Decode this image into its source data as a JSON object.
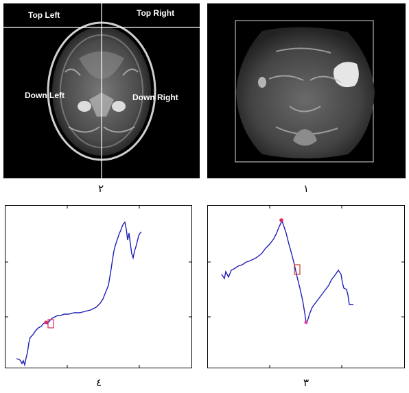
{
  "figures": [
    {
      "caption": "٢",
      "quadrant_labels": {
        "top_left": "Top Left",
        "top_right": "Top Right",
        "down_left": "Down Left",
        "down_right": "Down Right"
      },
      "divider_color": "#ffffff"
    },
    {
      "caption": "١",
      "box_color": "#d8d8d8",
      "lesion_color": "#e6e6e6"
    },
    {
      "caption": "٤",
      "line_color": "#1f1fb8",
      "marker_color": "#e0245e"
    },
    {
      "caption": "٣",
      "line_color": "#1f1fb8",
      "marker_color": "#e0245e"
    }
  ]
}
